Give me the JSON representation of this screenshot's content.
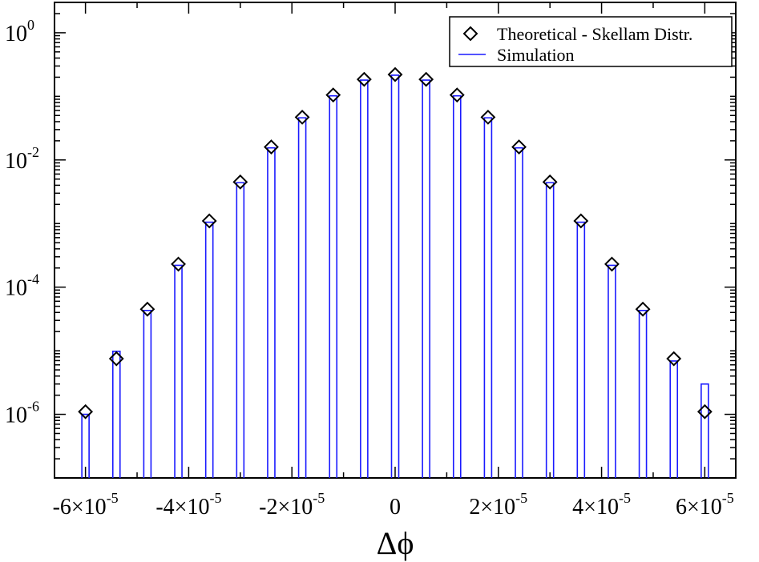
{
  "chart_data": {
    "type": "bar",
    "xlabel": "Δϕ",
    "ylabel": "",
    "x_scale": "linear",
    "y_scale": "log",
    "xlim": [
      -6.6e-05,
      6.6e-05
    ],
    "ylim": [
      1e-07,
      3
    ],
    "grid": false,
    "legend_position": "top-right",
    "x_ticks": [
      {
        "value": -6e-05,
        "label": "-6×10",
        "exp": "-5"
      },
      {
        "value": -4e-05,
        "label": "-4×10",
        "exp": "-5"
      },
      {
        "value": -2e-05,
        "label": "-2×10",
        "exp": "-5"
      },
      {
        "value": 0,
        "label": "0",
        "exp": ""
      },
      {
        "value": 2e-05,
        "label": "2×10",
        "exp": "-5"
      },
      {
        "value": 4e-05,
        "label": "4×10",
        "exp": "-5"
      },
      {
        "value": 6e-05,
        "label": "6×10",
        "exp": "-5"
      }
    ],
    "y_ticks": [
      {
        "value": 1e-06,
        "label": "10",
        "exp": "-6"
      },
      {
        "value": 0.0001,
        "label": "10",
        "exp": "-4"
      },
      {
        "value": 0.01,
        "label": "10",
        "exp": "-2"
      },
      {
        "value": 1,
        "label": "10",
        "exp": "0"
      }
    ],
    "x": [
      -6e-05,
      -5.4e-05,
      -4.8e-05,
      -4.2e-05,
      -3.6e-05,
      -3e-05,
      -2.4e-05,
      -1.8e-05,
      -1.2e-05,
      -6e-06,
      0,
      6e-06,
      1.2e-05,
      1.8e-05,
      2.4e-05,
      3e-05,
      3.6e-05,
      4.2e-05,
      4.8e-05,
      5.4e-05,
      6e-05
    ],
    "series": [
      {
        "name": "Theoretical - Skellam Distr.",
        "style": "diamond-marker",
        "color": "#000000",
        "values": [
          1.1e-06,
          7.5e-06,
          4.5e-05,
          0.00023,
          0.0011,
          0.0045,
          0.016,
          0.047,
          0.105,
          0.185,
          0.22,
          0.185,
          0.105,
          0.047,
          0.016,
          0.0045,
          0.0011,
          0.00023,
          4.5e-05,
          7.5e-06,
          1.1e-06
        ]
      },
      {
        "name": "Simulation",
        "style": "bar",
        "color": "#1a1aff",
        "values": [
          1e-06,
          9.8e-06,
          4.3e-05,
          0.00022,
          0.00105,
          0.0044,
          0.0155,
          0.046,
          0.102,
          0.18,
          0.215,
          0.18,
          0.102,
          0.046,
          0.0155,
          0.0044,
          0.00105,
          0.00022,
          4.3e-05,
          6.9e-06,
          3e-06
        ]
      }
    ]
  }
}
